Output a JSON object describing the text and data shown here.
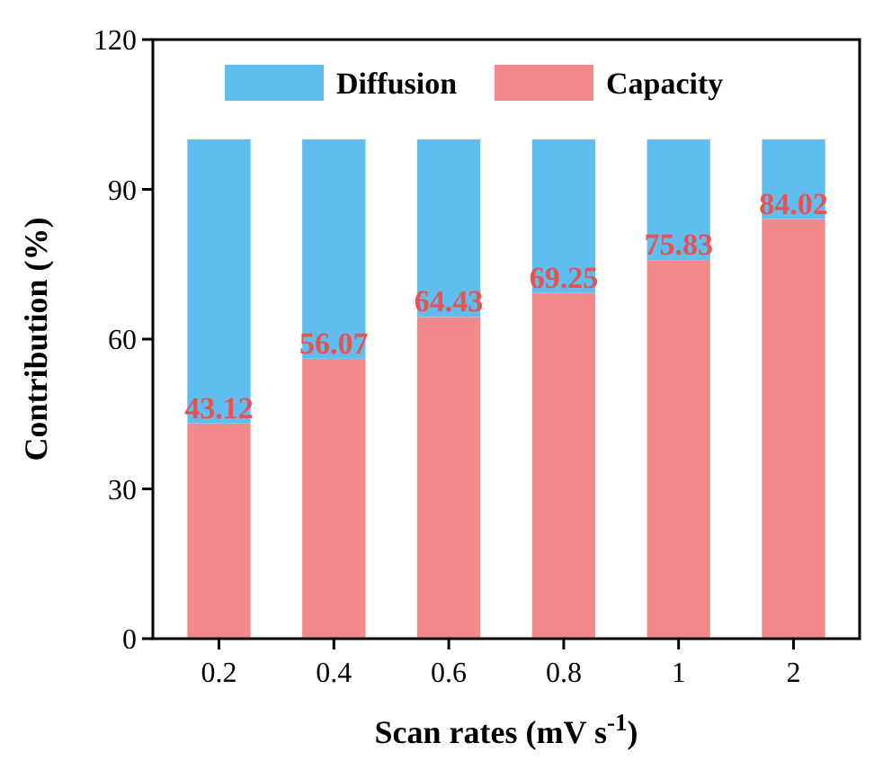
{
  "chart_data": {
    "type": "bar",
    "stacked": true,
    "xlabel": "Scan rates (mV s$^{-1}$)",
    "ylabel": "Contribution (%)",
    "categories": [
      "0.2",
      "0.4",
      "0.6",
      "0.8",
      "1",
      "2"
    ],
    "ylim": [
      0,
      120
    ],
    "yticks": [
      0,
      30,
      60,
      90,
      120
    ],
    "legend": "top",
    "grid": false,
    "series": [
      {
        "name": "Capacity",
        "color": "#f4898b",
        "values": [
          43.12,
          56.07,
          64.43,
          69.25,
          75.83,
          84.02
        ],
        "value_labels": [
          "43.12",
          "56.07",
          "64.43",
          "69.25",
          "75.83",
          "84.02"
        ]
      },
      {
        "name": "Diffusion",
        "color": "#5fbdf0",
        "values": [
          56.88,
          43.93,
          35.57,
          30.75,
          24.17,
          15.98
        ]
      }
    ]
  }
}
